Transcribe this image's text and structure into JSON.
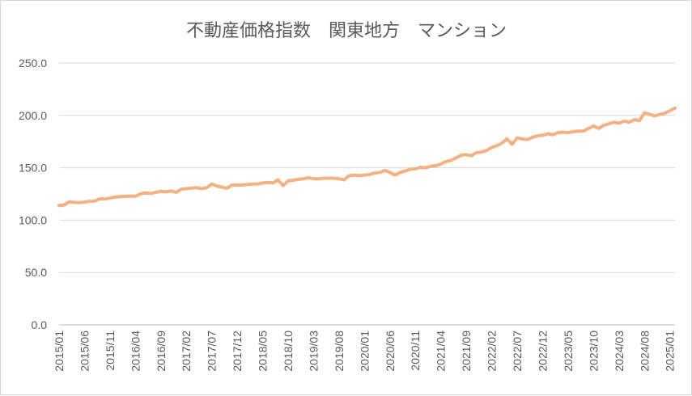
{
  "chart_data": {
    "type": "line",
    "title": "不動産価格指数　関東地方　マンション",
    "xlabel": "",
    "ylabel": "",
    "ylim": [
      0,
      250
    ],
    "yticks": [
      "0.0",
      "50.0",
      "100.0",
      "150.0",
      "200.0",
      "250.0"
    ],
    "yticks_values": [
      0,
      50,
      100,
      150,
      200,
      250
    ],
    "grid": true,
    "legend": "none",
    "xtick_labels": [
      "2015/01",
      "2015/06",
      "2015/11",
      "2016/04",
      "2016/09",
      "2017/02",
      "2017/07",
      "2017/12",
      "2018/05",
      "2018/10",
      "2019/03",
      "2019/08",
      "2020/01",
      "2020/06",
      "2020/11",
      "2021/04",
      "2021/09",
      "2022/02",
      "2022/07",
      "2022/12",
      "2023/05",
      "2023/10",
      "2024/03",
      "2024/08",
      "2025/01"
    ],
    "series": [
      {
        "color": "#f4b183",
        "start": "2015/01",
        "values": [
          114.0,
          114.5,
          117.5,
          117.0,
          116.8,
          117.2,
          118.0,
          118.2,
          120.5,
          120.3,
          121.0,
          122.0,
          122.5,
          122.8,
          123.0,
          122.8,
          125.0,
          126.0,
          125.5,
          126.5,
          127.5,
          127.0,
          127.8,
          126.5,
          129.5,
          130.0,
          130.5,
          131.0,
          130.0,
          131.0,
          134.5,
          132.5,
          131.5,
          130.5,
          133.5,
          133.5,
          133.5,
          134.0,
          134.5,
          134.5,
          135.5,
          136.0,
          135.5,
          138.5,
          133.0,
          137.5,
          138.0,
          139.0,
          139.5,
          140.5,
          139.5,
          139.5,
          140.0,
          140.0,
          140.0,
          139.5,
          138.5,
          142.5,
          143.0,
          142.5,
          143.0,
          143.5,
          145.0,
          145.5,
          147.5,
          145.5,
          143.0,
          145.5,
          147.0,
          148.5,
          149.0,
          150.5,
          150.0,
          151.5,
          152.0,
          153.5,
          156.0,
          157.0,
          159.5,
          162.0,
          162.5,
          161.5,
          164.5,
          165.0,
          166.5,
          169.5,
          171.0,
          173.5,
          177.5,
          172.5,
          178.5,
          177.5,
          177.0,
          179.0,
          180.5,
          181.0,
          182.5,
          181.5,
          183.5,
          184.0,
          183.5,
          184.5,
          185.0,
          185.0,
          187.5,
          190.0,
          187.5,
          190.5,
          192.0,
          193.5,
          192.5,
          194.5,
          193.5,
          196.0,
          195.0,
          202.5,
          201.0,
          199.5,
          201.0,
          202.0,
          204.5,
          207.0
        ]
      }
    ]
  }
}
